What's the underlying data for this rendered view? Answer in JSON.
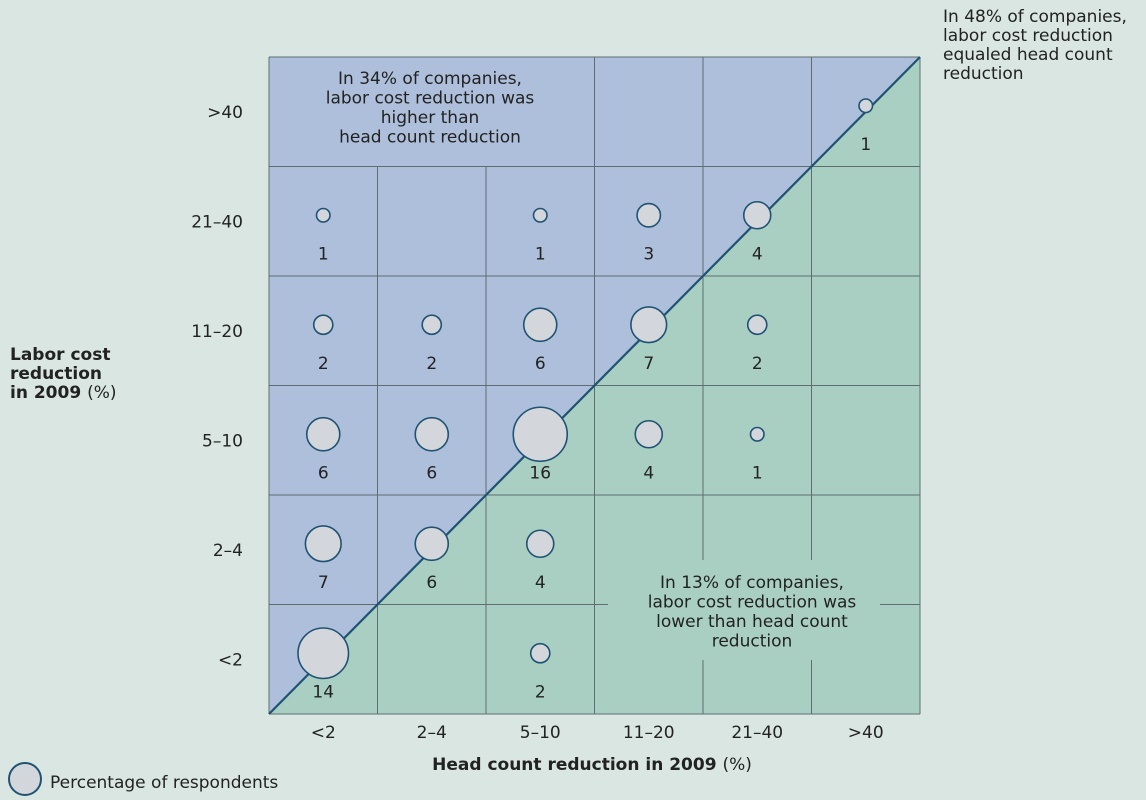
{
  "chart_data": {
    "type": "bubble-matrix",
    "x_categories": [
      "<2",
      "2–4",
      "5–10",
      "11–20",
      "21–40",
      ">40"
    ],
    "y_categories": [
      "<2",
      "2–4",
      "5–10",
      "11–20",
      "21–40",
      ">40"
    ],
    "xlabel": "Head count reduction in 2009",
    "xlabel_unit": "(%)",
    "ylabel_lines": [
      "Labor cost",
      "reduction",
      "in 2009"
    ],
    "ylabel_unit": "(%)",
    "legend_label": "Percentage of respondents",
    "points": [
      {
        "x": "<2",
        "y": "<2",
        "value": 14
      },
      {
        "x": "5–10",
        "y": "<2",
        "value": 2
      },
      {
        "x": "<2",
        "y": "2–4",
        "value": 7
      },
      {
        "x": "2–4",
        "y": "2–4",
        "value": 6
      },
      {
        "x": "5–10",
        "y": "2–4",
        "value": 4
      },
      {
        "x": "<2",
        "y": "5–10",
        "value": 6
      },
      {
        "x": "2–4",
        "y": "5–10",
        "value": 6
      },
      {
        "x": "5–10",
        "y": "5–10",
        "value": 16
      },
      {
        "x": "11–20",
        "y": "5–10",
        "value": 4
      },
      {
        "x": "21–40",
        "y": "5–10",
        "value": 1
      },
      {
        "x": "<2",
        "y": "11–20",
        "value": 2
      },
      {
        "x": "2–4",
        "y": "11–20",
        "value": 2
      },
      {
        "x": "5–10",
        "y": "11–20",
        "value": 6
      },
      {
        "x": "11–20",
        "y": "11–20",
        "value": 7
      },
      {
        "x": "21–40",
        "y": "11–20",
        "value": 2
      },
      {
        "x": "<2",
        "y": "21–40",
        "value": 1
      },
      {
        "x": "5–10",
        "y": "21–40",
        "value": 1
      },
      {
        "x": "11–20",
        "y": "21–40",
        "value": 3
      },
      {
        "x": "21–40",
        "y": "21–40",
        "value": 4
      },
      {
        "x": ">40",
        "y": ">40",
        "value": 1
      }
    ],
    "annotations": {
      "higher": [
        "In 34% of companies,",
        "labor cost reduction was",
        "higher than",
        "head count reduction"
      ],
      "lower": [
        "In 13% of companies,",
        "labor cost reduction was",
        "lower than head count",
        "reduction"
      ],
      "equal": [
        "In 48% of companies,",
        "labor cost reduction",
        "equaled head count",
        "reduction"
      ]
    },
    "colors": {
      "upper_region": "#aebfdb",
      "lower_region": "#a9cfc3",
      "diagonal": "#1f5373",
      "bubble_fill": "#d3d7dc",
      "bubble_stroke": "#1f5373",
      "grid": "#5e6e70",
      "background": "#d9e6e2"
    }
  }
}
